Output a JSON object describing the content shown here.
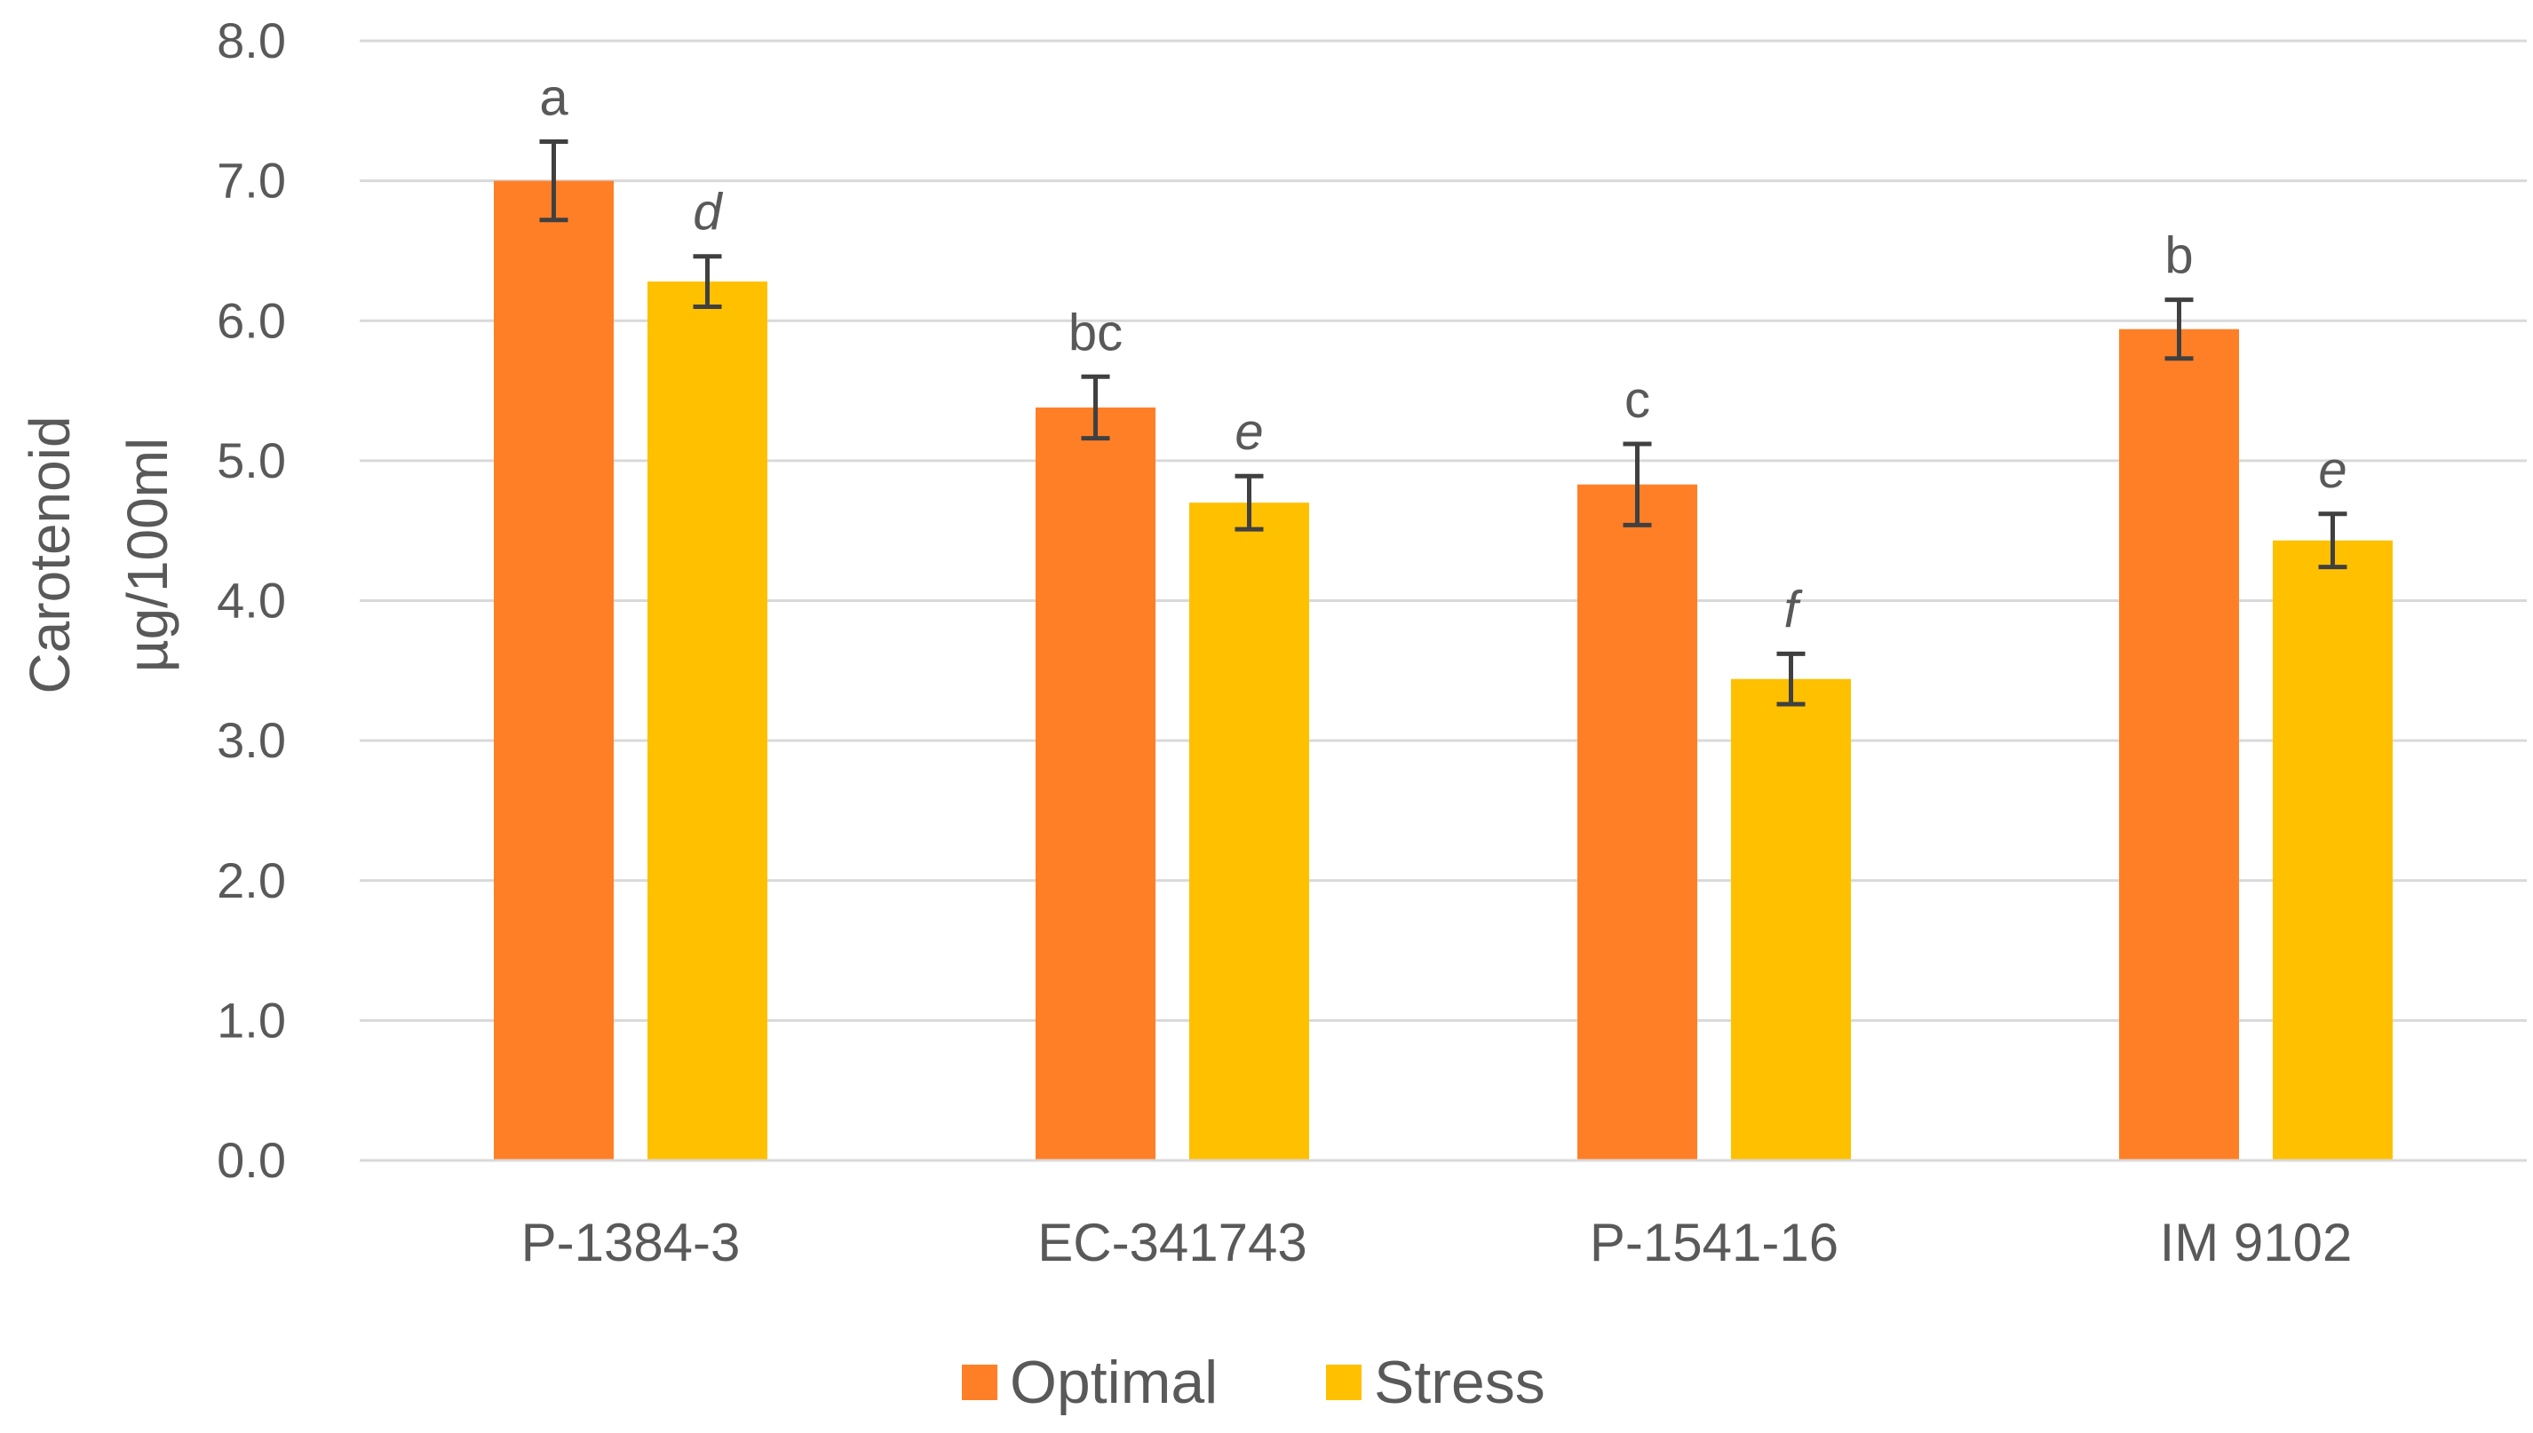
{
  "chart_data": {
    "type": "bar",
    "ylabel_lines": [
      "Carotenoid",
      "µg/100ml"
    ],
    "ylim": [
      0,
      8
    ],
    "yticks": [
      "0.0",
      "1.0",
      "2.0",
      "3.0",
      "4.0",
      "5.0",
      "6.0",
      "7.0",
      "8.0"
    ],
    "ytick_values": [
      0,
      1,
      2,
      3,
      4,
      5,
      6,
      7,
      8
    ],
    "grid": true,
    "legend_position": "bottom-center",
    "categories": [
      "P-1384-3",
      "EC-341743",
      "P-1541-16",
      "IM 9102"
    ],
    "series": [
      {
        "name": "Optimal",
        "color": "#FF7F27",
        "values": [
          7.0,
          5.38,
          4.83,
          5.94
        ],
        "errors": [
          0.28,
          0.22,
          0.29,
          0.21
        ],
        "labels": [
          "a",
          "bc",
          "c",
          "b"
        ],
        "labels_italic": false
      },
      {
        "name": "Stress",
        "color": "#FFC000",
        "values": [
          6.28,
          4.7,
          3.44,
          4.43
        ],
        "errors": [
          0.18,
          0.19,
          0.18,
          0.19
        ],
        "labels": [
          "d",
          "e",
          "f",
          "e"
        ],
        "labels_italic": true
      }
    ]
  }
}
